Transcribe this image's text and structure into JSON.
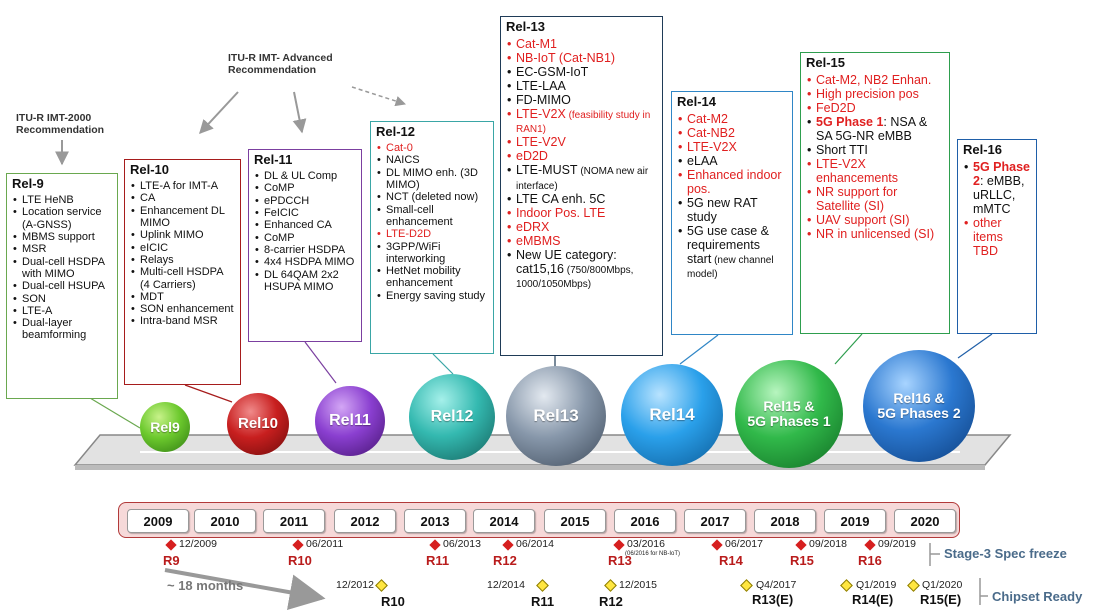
{
  "itu": {
    "imt2000": "ITU-R IMT-2000\nRecommendation",
    "imtadv": "ITU-R IMT- Advanced\nRecommendation"
  },
  "releases": [
    {
      "id": "rel9",
      "title": "Rel-9",
      "items": [
        {
          "t": "LTE HeNB"
        },
        {
          "t": "Location service (A-GNSS)"
        },
        {
          "t": "MBMS support"
        },
        {
          "t": "MSR"
        },
        {
          "t": "Dual-cell HSDPA with MIMO"
        },
        {
          "t": "Dual-cell HSUPA"
        },
        {
          "t": "SON"
        },
        {
          "t": "LTE-A"
        },
        {
          "t": "Dual-layer beamforming"
        }
      ]
    },
    {
      "id": "rel10",
      "title": "Rel-10",
      "items": [
        {
          "t": "LTE-A for IMT-A"
        },
        {
          "t": "CA"
        },
        {
          "t": "Enhancement DL MIMO"
        },
        {
          "t": "Uplink MIMO"
        },
        {
          "t": "eICIC"
        },
        {
          "t": "Relays"
        },
        {
          "t": "Multi-cell HSDPA (4 Carriers)"
        },
        {
          "t": "MDT"
        },
        {
          "t": "SON enhancement"
        },
        {
          "t": "Intra-band MSR"
        }
      ]
    },
    {
      "id": "rel11",
      "title": "Rel-11",
      "items": [
        {
          "t": "DL & UL Comp"
        },
        {
          "t": "CoMP"
        },
        {
          "t": "ePDCCH"
        },
        {
          "t": "FeICIC"
        },
        {
          "t": "Enhanced CA"
        },
        {
          "t": "CoMP"
        },
        {
          "t": "8-carrier HSDPA"
        },
        {
          "t": "4x4 HSDPA MIMO"
        },
        {
          "t": "DL 64QAM 2x2 HSUPA MIMO"
        }
      ]
    },
    {
      "id": "rel12",
      "title": "Rel-12",
      "items": [
        {
          "t": "Cat-0",
          "red": true
        },
        {
          "t": "NAICS"
        },
        {
          "t": "DL MIMO enh. (3D MIMO)"
        },
        {
          "t": "NCT (deleted now)"
        },
        {
          "t": "Small-cell enhancement"
        },
        {
          "t": "LTE-D2D",
          "red": true
        },
        {
          "t": "3GPP/WiFi interworking"
        },
        {
          "t": "HetNet mobility enhancement"
        },
        {
          "t": "Energy saving study"
        }
      ]
    },
    {
      "id": "rel13",
      "title": "Rel-13",
      "items": [
        {
          "t": "Cat-M1",
          "red": true
        },
        {
          "t": "NB-IoT (Cat-NB1)",
          "red": true
        },
        {
          "t": "EC-GSM-IoT"
        },
        {
          "t": "LTE-LAA"
        },
        {
          "t": "FD-MIMO"
        },
        {
          "t": "LTE-V2X",
          "s": " (feasibility study in RAN1)",
          "red": true
        },
        {
          "t": "LTE-V2V",
          "red": true
        },
        {
          "t": "eD2D",
          "red": true
        },
        {
          "t": "LTE-MUST",
          "s": " (NOMA new air interface)"
        },
        {
          "t": "LTE CA enh. 5C"
        },
        {
          "t": "Indoor Pos. LTE",
          "red": true
        },
        {
          "t": "eDRX",
          "red": true
        },
        {
          "t": "eMBMS",
          "red": true
        },
        {
          "t": "New UE category: cat15,16",
          "s": " (750/800Mbps, 1000/1050Mbps)"
        }
      ]
    },
    {
      "id": "rel14",
      "title": "Rel-14",
      "items": [
        {
          "t": "Cat-M2",
          "red": true
        },
        {
          "t": "Cat-NB2",
          "red": true
        },
        {
          "t": "LTE-V2X",
          "red": true
        },
        {
          "t": "eLAA"
        },
        {
          "t": "Enhanced indoor pos.",
          "red": true
        },
        {
          "t": "5G new RAT study"
        },
        {
          "t": "5G use case & requirements start",
          "s": " (new channel model)"
        }
      ]
    },
    {
      "id": "rel15",
      "title": "Rel-15",
      "items": [
        {
          "t": "Cat-M2, NB2 Enhan.",
          "red": true
        },
        {
          "t": "High precision pos",
          "red": true
        },
        {
          "t": "FeD2D",
          "red": true
        },
        {
          "b": "5G Phase 1",
          "t": ": NSA & SA 5G-NR eMBB"
        },
        {
          "t": "Short TTI"
        },
        {
          "t": "LTE-V2X enhancements",
          "red": true
        },
        {
          "t": "NR support for Satellite (SI)",
          "red": true
        },
        {
          "t": "UAV support (SI)",
          "red": true
        },
        {
          "t": "NR in unlicensed (SI)",
          "red": true
        }
      ]
    },
    {
      "id": "rel16",
      "title": "Rel-16",
      "items": [
        {
          "b": "5G Phase 2",
          "t": ": eMBB, uRLLC, mMTC"
        },
        {
          "t": "other items TBD",
          "red": true
        }
      ]
    }
  ],
  "spheres": [
    "Rel9",
    "Rel10",
    "Rel11",
    "Rel12",
    "Rel13",
    "Rel14",
    "Rel15 &\n5G Phases 1",
    "Rel16 &\n5G Phases 2"
  ],
  "years": [
    "2009",
    "2010",
    "2011",
    "2012",
    "2013",
    "2014",
    "2015",
    "2016",
    "2017",
    "2018",
    "2019",
    "2020"
  ],
  "freeze": [
    {
      "date": "12/2009",
      "rel": "R9"
    },
    {
      "date": "06/2011",
      "rel": "R10"
    },
    {
      "date": "06/2013",
      "rel": "R11"
    },
    {
      "date": "06/2014",
      "rel": "R12"
    },
    {
      "date": "03/2016",
      "note": "(06/2016 for NB-IoT)",
      "rel": "R13"
    },
    {
      "date": "06/2017",
      "rel": "R14"
    },
    {
      "date": "09/2018",
      "rel": "R15"
    },
    {
      "date": "09/2019",
      "rel": "R16"
    }
  ],
  "chipset": [
    {
      "date": "12/2012",
      "rel": "R10"
    },
    {
      "date": "12/2014",
      "rel": "R11"
    },
    {
      "date": "12/2015",
      "rel": "R12"
    },
    {
      "date": "Q4/2017",
      "rel": "R13(E)"
    },
    {
      "date": "Q1/2019",
      "rel": "R14(E)"
    },
    {
      "date": "Q1/2020",
      "rel": "R15(E)"
    }
  ],
  "labels": {
    "months": "~ 18 months",
    "stage3": "Stage-3 Spec freeze",
    "chipset": "Chipset Ready"
  },
  "colors": {
    "rel9": "#6aa84f",
    "rel10": "#a61c1c",
    "rel11": "#7b3fa0",
    "rel12": "#3aa6a6",
    "rel13": "#1f3b57",
    "rel14": "#2f86c6",
    "rel15": "#2e9e4e",
    "rel16": "#1f5fa8"
  }
}
